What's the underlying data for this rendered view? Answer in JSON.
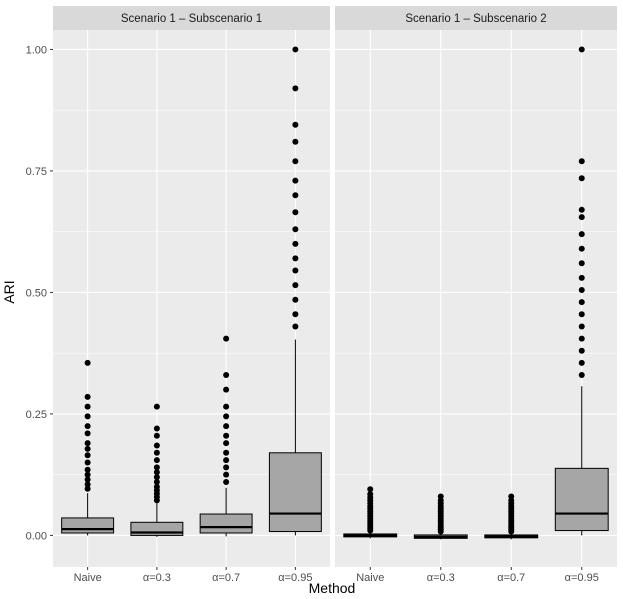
{
  "chart_data": {
    "type": "boxplot",
    "xlabel": "Method",
    "ylabel": "ARI",
    "ylim": [
      -0.065,
      1.04
    ],
    "yticks": [
      0.0,
      0.25,
      0.5,
      0.75,
      1.0
    ],
    "ytick_labels": [
      "0.00",
      "0.25",
      "0.50",
      "0.75",
      "1.00"
    ],
    "categories": [
      "Naive",
      "α=0.3",
      "α=0.7",
      "α=0.95"
    ],
    "colors": {
      "panel_bg": "#ebebeb",
      "grid": "#ffffff",
      "strip_bg": "#d9d9d9",
      "box_fill": "#a6a6a6",
      "line": "#000000",
      "text": "#1a1a1a",
      "tick_text": "#4d4d4d"
    },
    "panels": [
      {
        "title": "Scenario 1 – Subscenario 1",
        "boxes": [
          {
            "category": "Naive",
            "whisker_low": 0.0,
            "q1": 0.005,
            "median": 0.013,
            "q3": 0.036,
            "whisker_high": 0.087,
            "outliers": [
              0.096,
              0.105,
              0.115,
              0.125,
              0.135,
              0.15,
              0.165,
              0.178,
              0.19,
              0.21,
              0.225,
              0.245,
              0.265,
              0.285,
              0.355
            ]
          },
          {
            "category": "α=0.3",
            "whisker_low": -0.003,
            "q1": 0.0,
            "median": 0.006,
            "q3": 0.027,
            "whisker_high": 0.066,
            "outliers": [
              0.072,
              0.079,
              0.086,
              0.093,
              0.1,
              0.11,
              0.12,
              0.13,
              0.14,
              0.155,
              0.17,
              0.185,
              0.205,
              0.22,
              0.265
            ]
          },
          {
            "category": "α=0.7",
            "whisker_low": -0.002,
            "q1": 0.005,
            "median": 0.017,
            "q3": 0.044,
            "whisker_high": 0.098,
            "outliers": [
              0.11,
              0.125,
              0.14,
              0.155,
              0.17,
              0.19,
              0.205,
              0.225,
              0.245,
              0.265,
              0.3,
              0.33,
              0.405
            ]
          },
          {
            "category": "α=0.95",
            "whisker_low": 0.0,
            "q1": 0.008,
            "median": 0.045,
            "q3": 0.17,
            "whisker_high": 0.403,
            "outliers": [
              0.43,
              0.455,
              0.485,
              0.515,
              0.545,
              0.57,
              0.6,
              0.63,
              0.665,
              0.7,
              0.73,
              0.77,
              0.81,
              0.845,
              0.92,
              1.0
            ]
          }
        ]
      },
      {
        "title": "Scenario 1 – Subscenario 2",
        "boxes": [
          {
            "category": "Naive",
            "whisker_low": -0.006,
            "q1": -0.003,
            "median": 0.0,
            "q3": 0.003,
            "whisker_high": 0.006,
            "outliers": [
              0.01,
              0.015,
              0.02,
              0.025,
              0.03,
              0.035,
              0.04,
              0.045,
              0.05,
              0.055,
              0.06,
              0.066,
              0.072,
              0.078,
              0.085,
              0.095
            ]
          },
          {
            "category": "α=0.3",
            "whisker_low": -0.008,
            "q1": -0.006,
            "median": -0.003,
            "q3": 0.001,
            "whisker_high": 0.004,
            "outliers": [
              0.008,
              0.012,
              0.016,
              0.02,
              0.025,
              0.03,
              0.035,
              0.04,
              0.045,
              0.05,
              0.055,
              0.06,
              0.066,
              0.072,
              0.08
            ]
          },
          {
            "category": "α=0.7",
            "whisker_low": -0.008,
            "q1": -0.005,
            "median": -0.002,
            "q3": 0.001,
            "whisker_high": 0.004,
            "outliers": [
              0.008,
              0.012,
              0.016,
              0.02,
              0.025,
              0.03,
              0.035,
              0.04,
              0.045,
              0.05,
              0.055,
              0.06,
              0.066,
              0.072,
              0.08
            ]
          },
          {
            "category": "α=0.95",
            "whisker_low": 0.0,
            "q1": 0.01,
            "median": 0.045,
            "q3": 0.138,
            "whisker_high": 0.307,
            "outliers": [
              0.33,
              0.355,
              0.38,
              0.405,
              0.43,
              0.455,
              0.48,
              0.505,
              0.53,
              0.56,
              0.59,
              0.62,
              0.655,
              0.67,
              0.735,
              0.77,
              1.0
            ]
          }
        ]
      }
    ]
  }
}
